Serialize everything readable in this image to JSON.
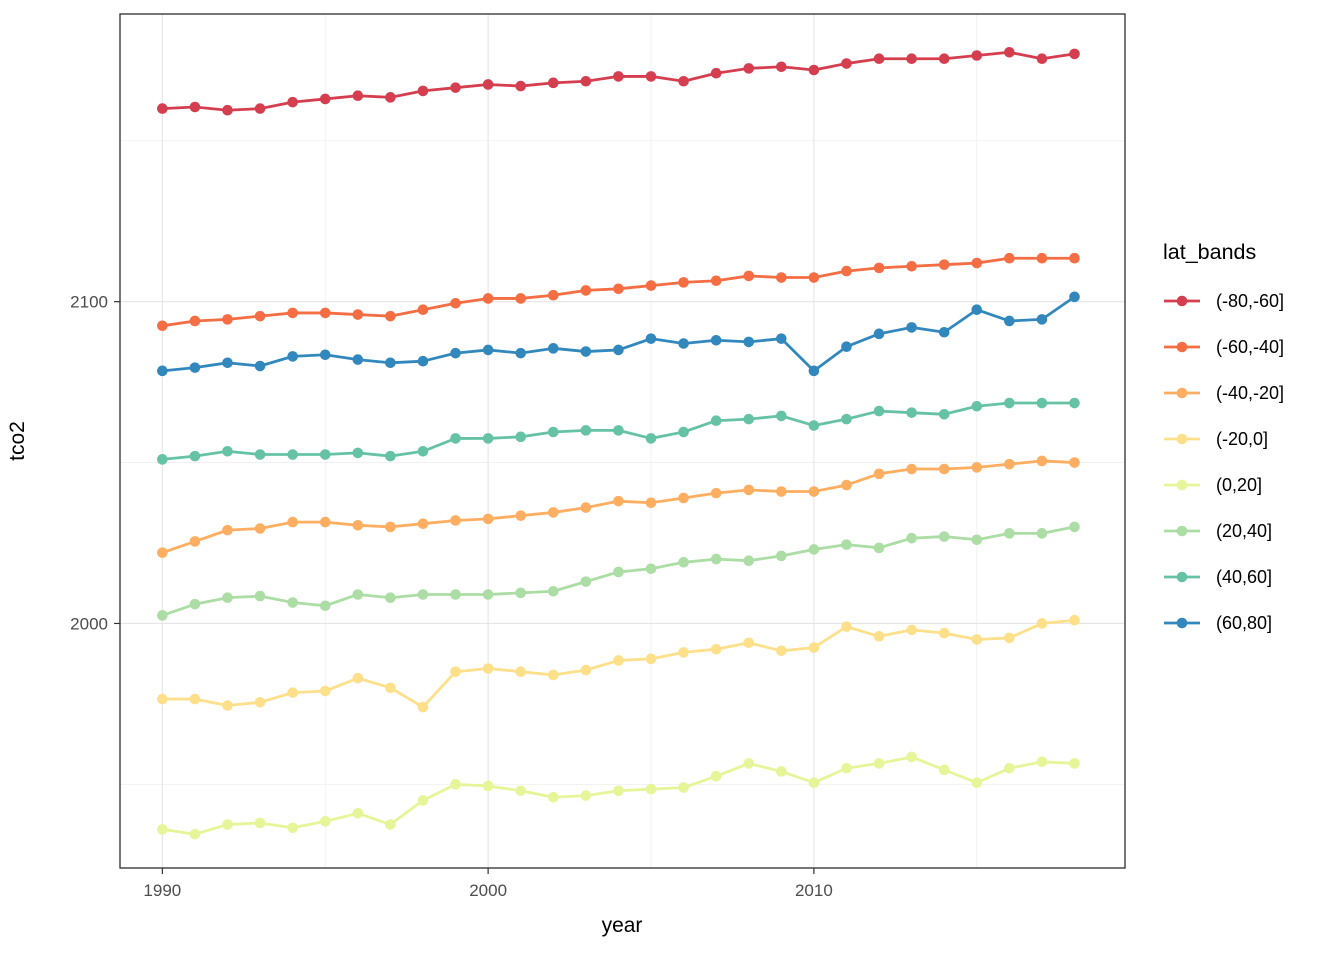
{
  "figure": {
    "background": "#ffffff"
  },
  "chart_data": {
    "type": "line",
    "markers": true,
    "title": "",
    "xlabel": "year",
    "ylabel": "tco2",
    "legend_title": "lat_bands",
    "legend_position": "right",
    "grid": true,
    "x": [
      1990,
      1991,
      1992,
      1993,
      1994,
      1995,
      1996,
      1997,
      1998,
      1999,
      2000,
      2001,
      2002,
      2003,
      2004,
      2005,
      2006,
      2007,
      2008,
      2009,
      2010,
      2011,
      2012,
      2013,
      2014,
      2015,
      2016,
      2017,
      2018
    ],
    "x_tick_labels": [
      "1990",
      "2000",
      "2010"
    ],
    "x_major_ticks": [
      1990,
      2000,
      2010
    ],
    "x_minor_gridlines": [
      1995,
      2005,
      2015
    ],
    "y_tick_labels": [
      "2000",
      "2100"
    ],
    "y_major_ticks": [
      2000,
      2100
    ],
    "y_minor_gridlines": [
      1950,
      2050,
      2150
    ],
    "xlim": [
      1988.7,
      2019.55
    ],
    "ylim": [
      1924,
      2189.4
    ],
    "style": {
      "panel_background": "#ffffff",
      "panel_border_color": "#2d2d2d",
      "grid_major_color": "#e5e5e5",
      "grid_minor_color": "#efefef",
      "tick_color": "#333333",
      "tick_label_color": "#4d4d4d",
      "axis_title_color": "#000000",
      "legend_text_color": "#000000"
    },
    "series": [
      {
        "name": "(-80,-60]",
        "color": "#d53e4f",
        "values": [
          2160,
          2160.5,
          2159.5,
          2160,
          2162,
          2163,
          2164,
          2163.5,
          2165.5,
          2166.5,
          2167.5,
          2167,
          2168,
          2168.5,
          2170,
          2170,
          2168.5,
          2171,
          2172.5,
          2173,
          2172,
          2174,
          2175.5,
          2175.5,
          2175.5,
          2176.5,
          2177.5,
          2175.5,
          2177
        ]
      },
      {
        "name": "(-60,-40]",
        "color": "#f46d43",
        "values": [
          2092.5,
          2094,
          2094.5,
          2095.5,
          2096.5,
          2096.5,
          2096,
          2095.5,
          2097.5,
          2099.5,
          2101,
          2101,
          2102,
          2103.5,
          2104,
          2105,
          2106,
          2106.5,
          2108,
          2107.5,
          2107.5,
          2109.5,
          2110.5,
          2111,
          2111.5,
          2112,
          2113.5,
          2113.5,
          2113.5
        ]
      },
      {
        "name": "(-40,-20]",
        "color": "#fdae61",
        "values": [
          2022,
          2025.5,
          2029,
          2029.5,
          2031.5,
          2031.5,
          2030.5,
          2030,
          2031,
          2032,
          2032.5,
          2033.5,
          2034.5,
          2036,
          2038,
          2037.5,
          2039,
          2040.5,
          2041.5,
          2041,
          2041,
          2043,
          2046.5,
          2048,
          2048,
          2048.5,
          2049.5,
          2050.5,
          2050
        ]
      },
      {
        "name": "(-20,0]",
        "color": "#fee08b",
        "values": [
          1976.5,
          1976.5,
          1974.5,
          1975.5,
          1978.5,
          1979,
          1983,
          1980,
          1974,
          1985,
          1986,
          1985,
          1984,
          1985.5,
          1988.5,
          1989,
          1991,
          1992,
          1994,
          1991.5,
          1992.5,
          1999,
          1996,
          1998,
          1997,
          1995,
          1995.5,
          2000,
          2001
        ]
      },
      {
        "name": "(0,20]",
        "color": "#e6f598",
        "values": [
          1936,
          1934.5,
          1937.5,
          1938,
          1936.5,
          1938.5,
          1941,
          1937.5,
          1945,
          1950,
          1949.5,
          1948,
          1946,
          1946.5,
          1948,
          1948.5,
          1949,
          1952.5,
          1956.5,
          1954,
          1950.5,
          1955,
          1956.5,
          1958.5,
          1954.5,
          1950.5,
          1955,
          1957,
          1956.5
        ]
      },
      {
        "name": "(20,40]",
        "color": "#abdda4",
        "values": [
          2002.5,
          2006,
          2008,
          2008.5,
          2006.5,
          2005.5,
          2009,
          2008,
          2009,
          2009,
          2009,
          2009.5,
          2010,
          2013,
          2016,
          2017,
          2019,
          2020,
          2019.5,
          2021,
          2023,
          2024.5,
          2023.5,
          2026.5,
          2027,
          2026,
          2028,
          2028,
          2030
        ]
      },
      {
        "name": "(40,60]",
        "color": "#66c2a5",
        "values": [
          2051,
          2052,
          2053.5,
          2052.5,
          2052.5,
          2052.5,
          2053,
          2052,
          2053.5,
          2057.5,
          2057.5,
          2058,
          2059.5,
          2060,
          2060,
          2057.5,
          2059.5,
          2063,
          2063.5,
          2064.5,
          2061.5,
          2063.5,
          2066,
          2065.5,
          2065,
          2067.5,
          2068.5,
          2068.5,
          2068.5
        ]
      },
      {
        "name": "(60,80]",
        "color": "#3288bd",
        "values": [
          2078.5,
          2079.5,
          2081,
          2080,
          2083,
          2083.5,
          2082,
          2081,
          2081.5,
          2084,
          2085,
          2084,
          2085.5,
          2084.5,
          2085,
          2088.5,
          2087,
          2088,
          2087.5,
          2088.5,
          2078.5,
          2086,
          2090,
          2092,
          2090.5,
          2097.5,
          2094,
          2094.5,
          2101.5
        ]
      }
    ]
  }
}
